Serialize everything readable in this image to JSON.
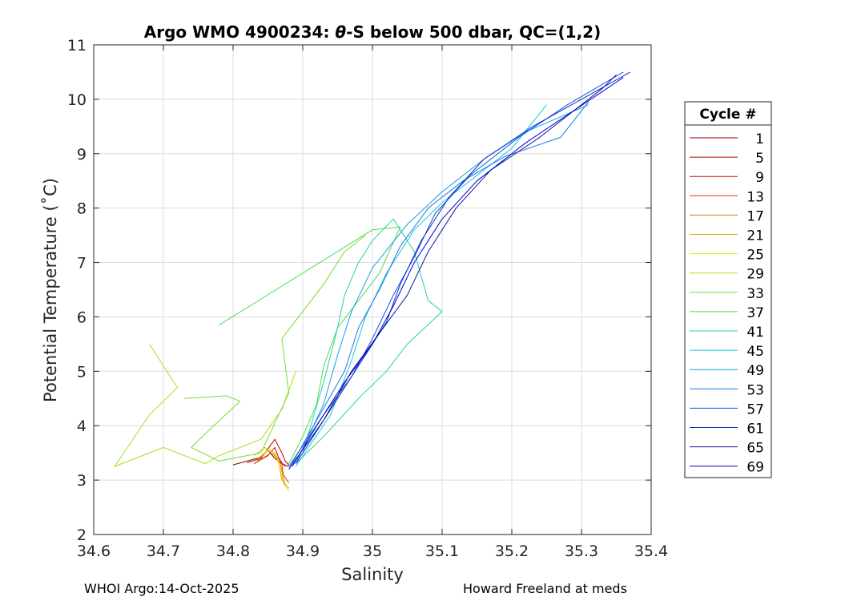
{
  "figure": {
    "footer_left": "WHOI Argo:14-Oct-2025",
    "footer_right": "Howard Freeland at meds"
  },
  "chart_data": {
    "type": "line",
    "title_prefix": "Argo WMO 4900234: ",
    "title_theta": "θ",
    "title_suffix": "-S below 500 dbar,  QC=(1,2)",
    "xlabel": "Salinity",
    "ylabel": "Potential Temperature (˚C)",
    "xlim": [
      34.6,
      35.4
    ],
    "ylim": [
      2,
      11
    ],
    "xticks": [
      34.6,
      34.7,
      34.8,
      34.9,
      35,
      35.1,
      35.2,
      35.3,
      35.4
    ],
    "xtick_labels": [
      "34.6",
      "34.7",
      "34.8",
      "34.9",
      "35",
      "35.1",
      "35.2",
      "35.3",
      "35.4"
    ],
    "yticks": [
      2,
      3,
      4,
      5,
      6,
      7,
      8,
      9,
      10,
      11
    ],
    "ytick_labels": [
      "2",
      "3",
      "4",
      "5",
      "6",
      "7",
      "8",
      "9",
      "10",
      "11"
    ],
    "grid": true,
    "legend": {
      "title": "Cycle #",
      "location": "outside-right"
    },
    "series": [
      {
        "name": "1",
        "color": "#8c0000",
        "points": [
          [
            34.8,
            3.28
          ],
          [
            34.82,
            3.35
          ],
          [
            34.84,
            3.42
          ],
          [
            34.85,
            3.55
          ],
          [
            34.86,
            3.4
          ],
          [
            34.87,
            3.3
          ],
          [
            34.88,
            3.25
          ]
        ]
      },
      {
        "name": "5",
        "color": "#b40000",
        "points": [
          [
            34.82,
            3.32
          ],
          [
            34.84,
            3.4
          ],
          [
            34.86,
            3.75
          ],
          [
            34.87,
            3.5
          ],
          [
            34.875,
            3.35
          ],
          [
            34.88,
            3.28
          ]
        ]
      },
      {
        "name": "9",
        "color": "#d20a0a",
        "points": [
          [
            34.83,
            3.3
          ],
          [
            34.85,
            3.45
          ],
          [
            34.86,
            3.6
          ],
          [
            34.865,
            3.42
          ],
          [
            34.87,
            3.32
          ],
          [
            34.875,
            3.25
          ]
        ]
      },
      {
        "name": "13",
        "color": "#dc3c00",
        "points": [
          [
            34.84,
            3.38
          ],
          [
            34.855,
            3.5
          ],
          [
            34.865,
            3.4
          ],
          [
            34.87,
            3.3
          ],
          [
            34.872,
            3.1
          ],
          [
            34.88,
            2.95
          ]
        ]
      },
      {
        "name": "17",
        "color": "#e17800",
        "points": [
          [
            34.835,
            3.35
          ],
          [
            34.85,
            3.55
          ],
          [
            34.86,
            3.45
          ],
          [
            34.868,
            3.3
          ],
          [
            34.872,
            3.05
          ],
          [
            34.875,
            2.9
          ]
        ]
      },
      {
        "name": "21",
        "color": "#dcaa00",
        "points": [
          [
            34.83,
            3.45
          ],
          [
            34.845,
            3.6
          ],
          [
            34.86,
            3.5
          ],
          [
            34.865,
            3.35
          ],
          [
            34.87,
            3.0
          ],
          [
            34.88,
            2.85
          ]
        ]
      },
      {
        "name": "25",
        "color": "#e6e600",
        "points": [
          [
            34.835,
            3.4
          ],
          [
            34.85,
            3.55
          ],
          [
            34.862,
            3.45
          ],
          [
            34.868,
            3.2
          ],
          [
            34.872,
            2.95
          ],
          [
            34.88,
            2.8
          ]
        ]
      },
      {
        "name": "29",
        "color": "#a0e614",
        "points": [
          [
            34.68,
            5.5
          ],
          [
            34.72,
            4.7
          ],
          [
            34.68,
            4.2
          ],
          [
            34.63,
            3.25
          ],
          [
            34.7,
            3.6
          ],
          [
            34.76,
            3.3
          ],
          [
            34.78,
            3.45
          ],
          [
            34.8,
            3.55
          ],
          [
            34.84,
            3.75
          ],
          [
            34.87,
            4.3
          ],
          [
            34.89,
            5.0
          ]
        ]
      },
      {
        "name": "33",
        "color": "#78dc32",
        "points": [
          [
            34.73,
            4.5
          ],
          [
            34.79,
            4.55
          ],
          [
            34.81,
            4.45
          ],
          [
            34.76,
            3.85
          ],
          [
            34.74,
            3.6
          ],
          [
            34.78,
            3.35
          ],
          [
            34.84,
            3.5
          ],
          [
            34.88,
            4.6
          ],
          [
            34.87,
            5.6
          ],
          [
            34.9,
            6.1
          ],
          [
            34.93,
            6.6
          ],
          [
            34.96,
            7.2
          ],
          [
            34.99,
            7.5
          ]
        ]
      },
      {
        "name": "37",
        "color": "#46dc50",
        "points": [
          [
            34.78,
            5.85
          ],
          [
            35.0,
            7.6
          ],
          [
            35.04,
            7.65
          ],
          [
            35.01,
            6.8
          ],
          [
            34.98,
            6.3
          ],
          [
            34.95,
            5.8
          ],
          [
            34.93,
            5.1
          ],
          [
            34.92,
            4.4
          ],
          [
            34.9,
            3.8
          ],
          [
            34.88,
            3.3
          ]
        ]
      },
      {
        "name": "41",
        "color": "#28d2a0",
        "points": [
          [
            34.9,
            3.5
          ],
          [
            34.93,
            4.8
          ],
          [
            34.95,
            5.8
          ],
          [
            34.96,
            6.4
          ],
          [
            34.98,
            7.0
          ],
          [
            35.0,
            7.4
          ],
          [
            35.03,
            7.8
          ],
          [
            35.06,
            7.2
          ],
          [
            35.08,
            6.3
          ],
          [
            35.1,
            6.1
          ],
          [
            35.05,
            5.5
          ],
          [
            35.02,
            5.0
          ],
          [
            34.98,
            4.5
          ],
          [
            34.93,
            3.8
          ],
          [
            34.89,
            3.3
          ]
        ]
      },
      {
        "name": "45",
        "color": "#14c8dc",
        "points": [
          [
            34.89,
            3.25
          ],
          [
            34.94,
            4.2
          ],
          [
            34.97,
            5.2
          ],
          [
            34.99,
            6.0
          ],
          [
            35.02,
            6.8
          ],
          [
            35.06,
            7.6
          ],
          [
            35.1,
            8.1
          ],
          [
            35.15,
            8.6
          ],
          [
            35.2,
            9.1
          ],
          [
            35.25,
            9.9
          ]
        ]
      },
      {
        "name": "49",
        "color": "#14a0e6",
        "points": [
          [
            34.89,
            3.3
          ],
          [
            34.93,
            4.4
          ],
          [
            34.95,
            5.3
          ],
          [
            34.97,
            6.1
          ],
          [
            35.0,
            6.9
          ],
          [
            35.05,
            7.7
          ],
          [
            35.1,
            8.3
          ],
          [
            35.16,
            8.9
          ],
          [
            35.22,
            9.4
          ],
          [
            35.31,
            9.9
          ]
        ]
      },
      {
        "name": "53",
        "color": "#1e78e6",
        "points": [
          [
            34.88,
            3.2
          ],
          [
            34.92,
            4.1
          ],
          [
            34.96,
            5.0
          ],
          [
            34.98,
            5.8
          ],
          [
            35.01,
            6.5
          ],
          [
            35.04,
            7.3
          ],
          [
            35.08,
            8.0
          ],
          [
            35.13,
            8.5
          ],
          [
            35.19,
            8.95
          ],
          [
            35.27,
            9.3
          ],
          [
            35.31,
            9.95
          ]
        ]
      },
      {
        "name": "57",
        "color": "#1450e6",
        "points": [
          [
            34.88,
            3.25
          ],
          [
            34.93,
            4.2
          ],
          [
            34.97,
            4.9
          ],
          [
            35.0,
            5.6
          ],
          [
            35.03,
            6.4
          ],
          [
            35.06,
            7.1
          ],
          [
            35.09,
            7.9
          ],
          [
            35.14,
            8.6
          ],
          [
            35.21,
            9.3
          ],
          [
            35.28,
            9.9
          ],
          [
            35.36,
            10.5
          ]
        ]
      },
      {
        "name": "61",
        "color": "#0a32c8",
        "points": [
          [
            34.89,
            3.3
          ],
          [
            34.94,
            4.3
          ],
          [
            34.98,
            5.1
          ],
          [
            35.02,
            5.9
          ],
          [
            35.04,
            6.6
          ],
          [
            35.07,
            7.4
          ],
          [
            35.11,
            8.2
          ],
          [
            35.16,
            8.9
          ],
          [
            35.23,
            9.5
          ],
          [
            35.3,
            10.0
          ],
          [
            35.37,
            10.5
          ]
        ]
      },
      {
        "name": "65",
        "color": "#0a14a0",
        "points": [
          [
            34.88,
            3.2
          ],
          [
            34.93,
            4.1
          ],
          [
            34.97,
            5.0
          ],
          [
            35.01,
            5.7
          ],
          [
            35.05,
            6.4
          ],
          [
            35.08,
            7.2
          ],
          [
            35.12,
            8.0
          ],
          [
            35.17,
            8.7
          ],
          [
            35.24,
            9.3
          ],
          [
            35.33,
            10.2
          ],
          [
            35.35,
            10.45
          ]
        ]
      },
      {
        "name": "69",
        "color": "#0000c8",
        "points": [
          [
            34.885,
            3.25
          ],
          [
            34.92,
            4.0
          ],
          [
            34.96,
            4.8
          ],
          [
            35.0,
            5.5
          ],
          [
            35.03,
            6.2
          ],
          [
            35.06,
            7.0
          ],
          [
            35.1,
            7.8
          ],
          [
            35.15,
            8.5
          ],
          [
            35.22,
            9.2
          ],
          [
            35.29,
            9.8
          ],
          [
            35.36,
            10.4
          ]
        ]
      }
    ]
  }
}
